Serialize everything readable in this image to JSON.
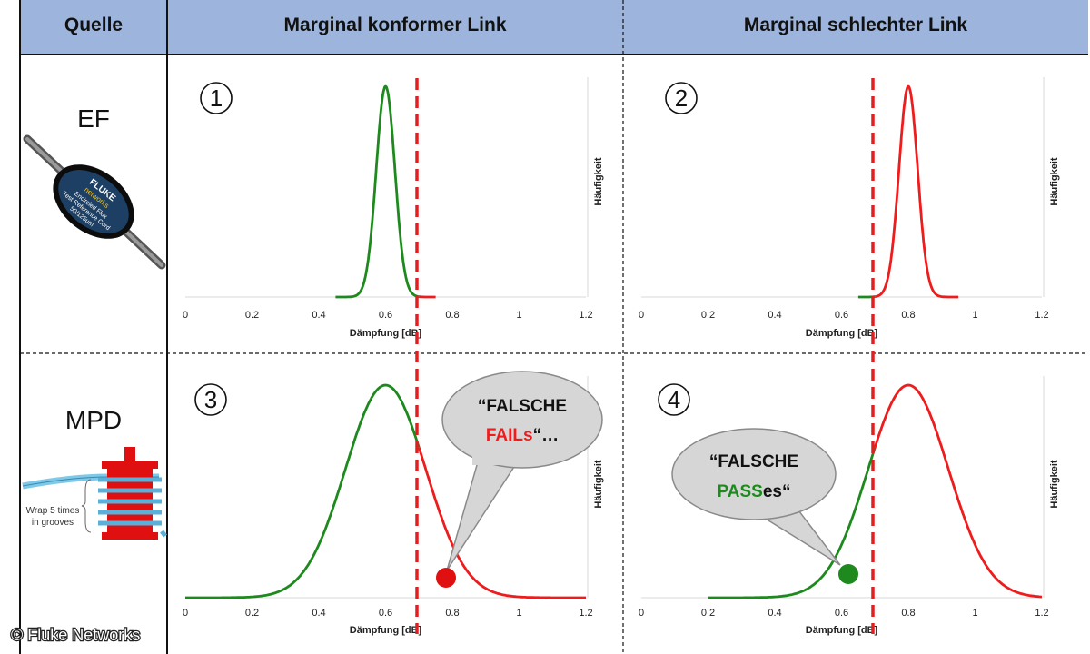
{
  "header": {
    "col_source": "Quelle",
    "col_conform": "Marginal konformer Link",
    "col_bad": "Marginal schlechter Link"
  },
  "rows": {
    "ef_label": "EF",
    "mpd_label": "MPD"
  },
  "ef_device": {
    "brand_line1": "FLUKE",
    "brand_line2": "networks",
    "text_line1": "Encircled Flux",
    "text_line2": "Test Reference Cord",
    "text_line3": "50/125um"
  },
  "mpd_device": {
    "wrap_line1": "Wrap 5 times",
    "wrap_line2": "in grooves"
  },
  "credit": "© Fluke Networks",
  "colors": {
    "pass_green": "#1e8a1e",
    "fail_red": "#ee1c1c",
    "header_fill": "#9db5dc",
    "limit_line": "#e02020"
  },
  "bubbles": {
    "false_fails": {
      "line1": "“FALSCHE",
      "highlight": "FAILs",
      "tail": "“…"
    },
    "false_passes": {
      "line1": "“FALSCHE",
      "highlight": "PASS",
      "tail": "es“"
    }
  },
  "chart_data": [
    {
      "panel": "1",
      "type": "line",
      "xlabel": "Dämpfung [dB]",
      "ylabel": "Häufigkeit",
      "xlim": [
        0,
        1.2
      ],
      "x_ticks": [
        "0",
        "0.2",
        "0.4",
        "0.6",
        "0.8",
        "1",
        "1.2"
      ],
      "limit": 0.7,
      "distribution": {
        "mean": 0.6,
        "sd": 0.028,
        "x_range": [
          0.45,
          0.75
        ]
      },
      "series": [
        {
          "color": "green",
          "x_range": [
            0.45,
            0.7
          ]
        },
        {
          "color": "red",
          "x_range": [
            0.7,
            0.75
          ]
        }
      ]
    },
    {
      "panel": "2",
      "type": "line",
      "xlabel": "Dämpfung [dB]",
      "ylabel": "Häufigkeit",
      "xlim": [
        0,
        1.2
      ],
      "x_ticks": [
        "0",
        "0.2",
        "0.4",
        "0.6",
        "0.8",
        "1",
        "1.2"
      ],
      "limit": 0.7,
      "distribution": {
        "mean": 0.8,
        "sd": 0.028,
        "x_range": [
          0.65,
          0.95
        ]
      },
      "series": [
        {
          "color": "green",
          "x_range": [
            0.65,
            0.7
          ]
        },
        {
          "color": "red",
          "x_range": [
            0.7,
            0.95
          ]
        }
      ]
    },
    {
      "panel": "3",
      "type": "line",
      "xlabel": "Dämpfung [dB]",
      "ylabel": "Häufigkeit",
      "xlim": [
        0,
        1.2
      ],
      "x_ticks": [
        "0",
        "0.2",
        "0.4",
        "0.6",
        "0.8",
        "1",
        "1.2"
      ],
      "limit": 0.7,
      "distribution": {
        "mean": 0.6,
        "sd": 0.12,
        "x_range": [
          0,
          1.2
        ]
      },
      "series": [
        {
          "color": "green",
          "x_range": [
            0,
            0.7
          ]
        },
        {
          "color": "red",
          "x_range": [
            0.7,
            1.2
          ]
        }
      ]
    },
    {
      "panel": "4",
      "type": "line",
      "xlabel": "Dämpfung [dB]",
      "ylabel": "Häufigkeit",
      "xlim": [
        0,
        1.2
      ],
      "x_ticks": [
        "0",
        "0.2",
        "0.4",
        "0.6",
        "0.8",
        "1",
        "1.2"
      ],
      "limit": 0.7,
      "distribution": {
        "mean": 0.8,
        "sd": 0.12,
        "x_range": [
          0.2,
          1.2
        ]
      },
      "series": [
        {
          "color": "green",
          "x_range": [
            0.2,
            0.7
          ]
        },
        {
          "color": "red",
          "x_range": [
            0.7,
            1.2
          ]
        }
      ]
    }
  ]
}
